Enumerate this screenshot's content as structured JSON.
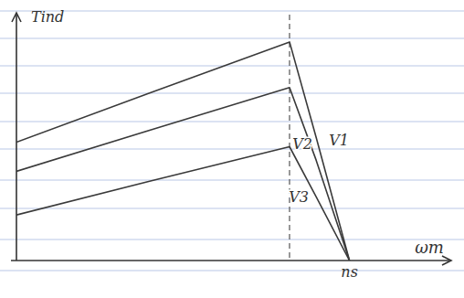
{
  "chart_data": {
    "type": "line",
    "x_label": "ωm",
    "y_label": "Tind",
    "x": [
      0,
      40,
      82,
      90,
      100
    ],
    "series": [
      {
        "name": "V1",
        "color": "#3a3a3a",
        "values": [
          130,
          184,
          240,
          135,
          0
        ]
      },
      {
        "name": "V2",
        "color": "#3a3a3a",
        "values": [
          98,
          143,
          190,
          110,
          0
        ]
      },
      {
        "name": "V3",
        "color": "#3a3a3a",
        "values": [
          50,
          87,
          125,
          70,
          0
        ]
      }
    ],
    "xlim": [
      0,
      130
    ],
    "ylim": [
      0,
      270
    ],
    "xticks": [],
    "yticks": [],
    "tick_labels": false,
    "grid": false,
    "reference_line": {
      "x": 82,
      "line_style": "dashed"
    },
    "annotations": [
      {
        "text": "ns",
        "x": 100
      }
    ]
  }
}
